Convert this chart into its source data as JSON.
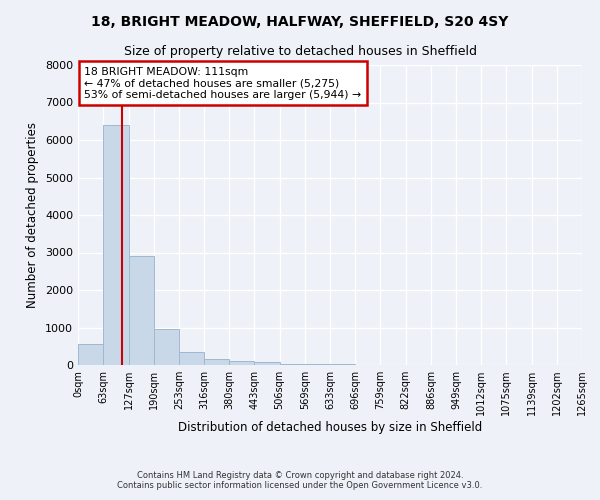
{
  "title": "18, BRIGHT MEADOW, HALFWAY, SHEFFIELD, S20 4SY",
  "subtitle": "Size of property relative to detached houses in Sheffield",
  "xlabel": "Distribution of detached houses by size in Sheffield",
  "ylabel": "Number of detached properties",
  "bar_color": "#c8d8e8",
  "bar_edge_color": "#a0b8d0",
  "red_line_x": 111,
  "bin_edges": [
    0,
    63,
    127,
    190,
    253,
    316,
    380,
    443,
    506,
    569,
    633,
    696,
    759,
    822,
    886,
    949,
    1012,
    1075,
    1139,
    1202,
    1265
  ],
  "bar_heights": [
    560,
    6400,
    2900,
    970,
    350,
    150,
    100,
    70,
    40,
    20,
    15,
    10,
    8,
    5,
    4,
    3,
    2,
    2,
    1,
    1
  ],
  "annotation_title": "18 BRIGHT MEADOW: 111sqm",
  "annotation_line1": "← 47% of detached houses are smaller (5,275)",
  "annotation_line2": "53% of semi-detached houses are larger (5,944) →",
  "annotation_box_color": "#ffffff",
  "annotation_box_edge_color": "#cc0000",
  "ylim": [
    0,
    8000
  ],
  "yticks": [
    0,
    1000,
    2000,
    3000,
    4000,
    5000,
    6000,
    7000,
    8000
  ],
  "footer1": "Contains HM Land Registry data © Crown copyright and database right 2024.",
  "footer2": "Contains public sector information licensed under the Open Government Licence v3.0.",
  "background_color": "#eef2f8"
}
